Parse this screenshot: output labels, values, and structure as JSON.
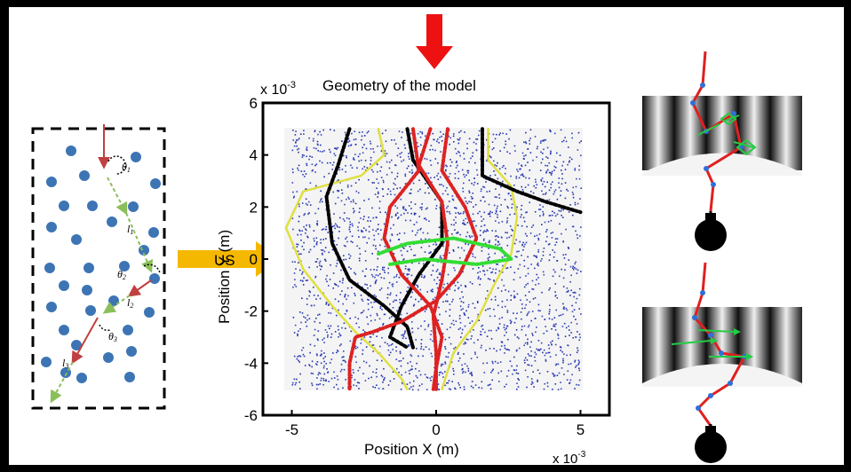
{
  "plot": {
    "title": "Geometry of the model",
    "x_axis_label": "Position X (m)",
    "y_axis_label": "Position Y (m)",
    "x_scale": "x 10",
    "y_scale": "x 10",
    "scale_exponent": "-3",
    "x_ticks": [
      "-5",
      "0",
      "5"
    ],
    "y_ticks": [
      "6",
      "4",
      "2",
      "0",
      "-2",
      "-4",
      "-6"
    ]
  },
  "us_arrow": {
    "label": "US"
  },
  "schematic": {
    "labels": {
      "theta1": "θ",
      "theta1_sub": "1",
      "l1": "l",
      "l1_sub": "1",
      "theta2": "θ",
      "theta2_sub": "2",
      "l2": "l",
      "l2_sub": "2",
      "theta3": "θ",
      "theta3_sub": "3",
      "l3": "l",
      "l3_sub": "3"
    }
  },
  "chart_data": {
    "type": "scatter",
    "xlim": [
      -6,
      6
    ],
    "ylim": [
      -6,
      6
    ],
    "x_scale_factor": "1e-3",
    "y_scale_factor": "1e-3",
    "grid": false,
    "series": [
      {
        "color": "#e0e040",
        "style": "solid",
        "points": [
          [
            -2.0,
            5
          ],
          [
            -1.8,
            4
          ],
          [
            -2.6,
            3.2
          ],
          [
            -4.6,
            2.6
          ],
          [
            -5.2,
            1.2
          ],
          [
            -4.6,
            -0.4
          ],
          [
            -3.6,
            -1.8
          ],
          [
            -2.8,
            -2.8
          ],
          [
            -2.0,
            -3.6
          ],
          [
            -1.2,
            -4.6
          ],
          [
            -1.0,
            -5
          ]
        ]
      },
      {
        "color": "#e0e040",
        "style": "solid",
        "points": [
          [
            1.8,
            5
          ],
          [
            1.8,
            3.8
          ],
          [
            2.6,
            2.8
          ],
          [
            2.8,
            1.6
          ],
          [
            2.6,
            0.2
          ],
          [
            2.0,
            -1.0
          ],
          [
            1.4,
            -2.4
          ],
          [
            0.6,
            -3.6
          ],
          [
            0.2,
            -5
          ]
        ]
      },
      {
        "color": "#000000",
        "style": "dotted",
        "points": [
          [
            -3.0,
            5
          ],
          [
            -3.4,
            3.6
          ],
          [
            -3.8,
            2.4
          ],
          [
            -3.6,
            0.6
          ],
          [
            -3.0,
            -0.8
          ],
          [
            -1.8,
            -1.8
          ],
          [
            -1.0,
            -2.6
          ],
          [
            -0.8,
            -3.4
          ]
        ]
      },
      {
        "color": "#000000",
        "style": "dotted",
        "points": [
          [
            -1.0,
            5
          ],
          [
            -0.8,
            3.8
          ],
          [
            0.2,
            2.2
          ],
          [
            0.2,
            0.6
          ],
          [
            -0.6,
            -0.6
          ],
          [
            -1.2,
            -1.8
          ],
          [
            -1.6,
            -3.0
          ],
          [
            -1.0,
            -3.4
          ]
        ]
      },
      {
        "color": "#000000",
        "style": "dotted",
        "points": [
          [
            1.6,
            5
          ],
          [
            1.6,
            3.2
          ],
          [
            2.8,
            2.6
          ],
          [
            3.8,
            2.2
          ],
          [
            5.0,
            1.8
          ]
        ]
      },
      {
        "color": "#dd2222",
        "style": "dotted",
        "points": [
          [
            -0.8,
            5
          ],
          [
            -0.6,
            3.4
          ],
          [
            -1.6,
            2.0
          ],
          [
            -1.8,
            0.8
          ],
          [
            -1.2,
            -0.6
          ],
          [
            -0.2,
            -1.8
          ],
          [
            0.2,
            -3.0
          ],
          [
            0.0,
            -4.2
          ],
          [
            -0.1,
            -5
          ]
        ]
      },
      {
        "color": "#dd2222",
        "style": "dotted",
        "points": [
          [
            -0.2,
            5
          ],
          [
            -0.6,
            3.6
          ],
          [
            0.2,
            2.2
          ],
          [
            0.4,
            0.6
          ],
          [
            0.2,
            -0.8
          ],
          [
            -0.1,
            -2.2
          ],
          [
            0.0,
            -3.6
          ],
          [
            0.0,
            -5
          ]
        ]
      },
      {
        "color": "#dd2222",
        "style": "dotted",
        "points": [
          [
            0.4,
            5
          ],
          [
            0.2,
            3.4
          ],
          [
            1.0,
            2.0
          ],
          [
            1.4,
            0.8
          ],
          [
            0.8,
            -0.6
          ],
          [
            0.0,
            -1.6
          ],
          [
            -1.2,
            -2.4
          ],
          [
            -2.2,
            -2.8
          ],
          [
            -2.8,
            -3.0
          ],
          [
            -3.0,
            -4.0
          ],
          [
            -3.0,
            -5
          ]
        ]
      },
      {
        "color": "#33dd33",
        "style": "dotted",
        "points": [
          [
            -2.0,
            0.2
          ],
          [
            -1.0,
            0.6
          ],
          [
            0.6,
            0.8
          ],
          [
            2.2,
            0.4
          ],
          [
            2.6,
            0.0
          ],
          [
            1.4,
            -0.2
          ],
          [
            -0.4,
            0.0
          ],
          [
            -1.6,
            -0.2
          ]
        ]
      }
    ]
  }
}
